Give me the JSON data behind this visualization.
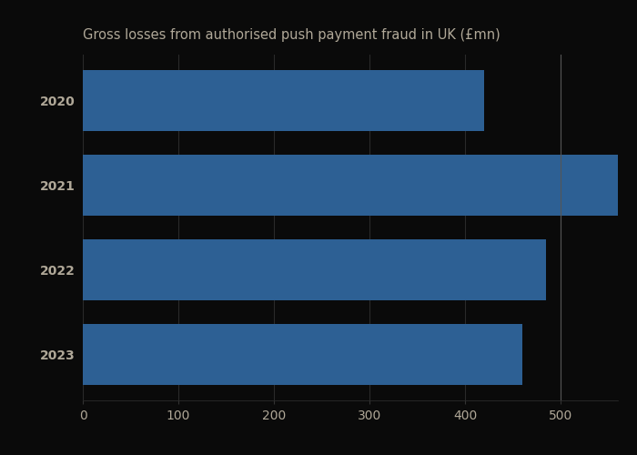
{
  "title": "Gross losses from authorised push payment fraud in UK (£mn)",
  "categories": [
    "2020",
    "2021",
    "2022",
    "2023"
  ],
  "values": [
    420,
    583,
    485,
    460
  ],
  "bar_color": "#2d6094",
  "background_color": "#0a0a0a",
  "text_color": "#b0a898",
  "xlim": [
    0,
    560
  ],
  "xticks": [
    0,
    100,
    200,
    300,
    400,
    500
  ],
  "title_fontsize": 10.5,
  "tick_fontsize": 10,
  "bar_height": 0.72,
  "vline_x": 500,
  "vline_color": "#555555",
  "grid_color": "#2a2a2a",
  "spine_color": "#333333"
}
